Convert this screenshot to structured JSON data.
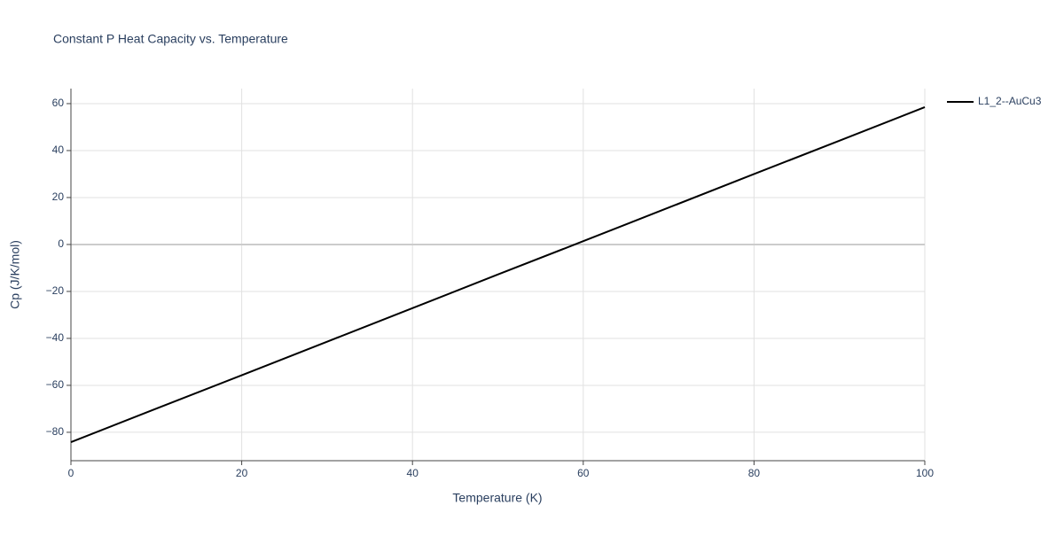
{
  "chart_data": {
    "type": "line",
    "title": "Constant P Heat Capacity vs. Temperature",
    "x_label": "Temperature (K)",
    "y_label": "Cp (J/K/mol)",
    "x": [
      0,
      10,
      20,
      30,
      40,
      50,
      60,
      70,
      80,
      90,
      100
    ],
    "series": [
      {
        "name": "L1_2--AuCu3",
        "color": "#000000",
        "values": [
          -84.2,
          -69.9,
          -55.7,
          -41.4,
          -27.1,
          -12.8,
          1.4,
          15.7,
          30.0,
          44.2,
          58.5
        ]
      }
    ],
    "xlim": [
      0,
      100
    ],
    "xticks": [
      0,
      20,
      40,
      60,
      80,
      100
    ],
    "ylim": [
      -92.1,
      66.4
    ],
    "yticks": [
      {
        "value": -80,
        "label": "−80"
      },
      {
        "value": -60,
        "label": "−60"
      },
      {
        "value": -40,
        "label": "−40"
      },
      {
        "value": -20,
        "label": "−20"
      },
      0,
      20,
      40,
      60
    ],
    "grid": true
  }
}
